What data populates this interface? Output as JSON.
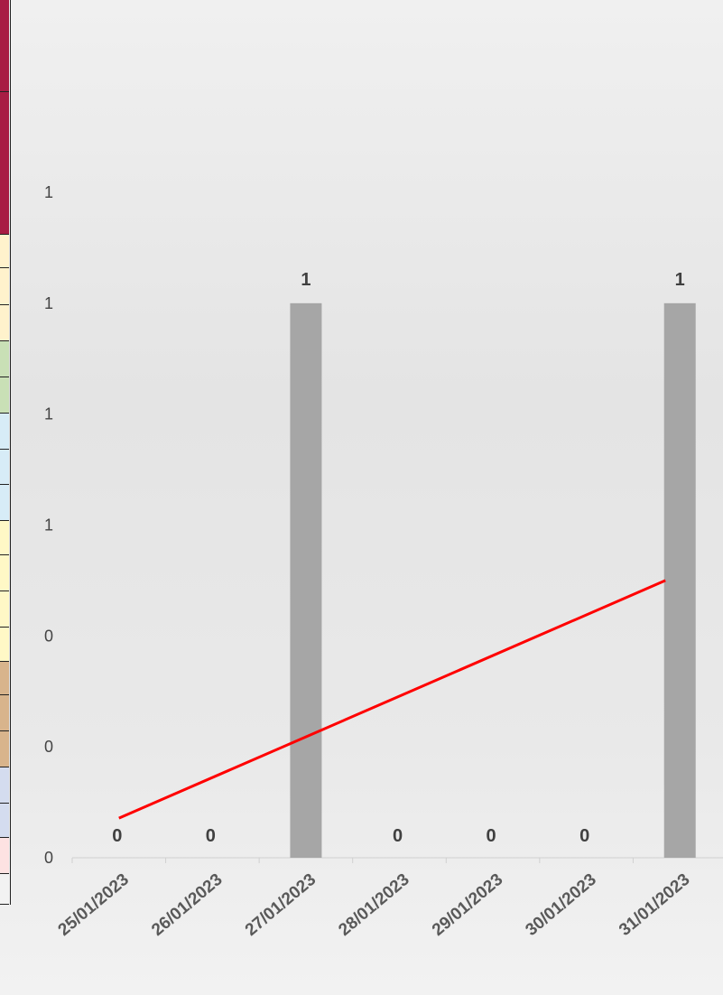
{
  "chart_data": {
    "type": "bar",
    "categories": [
      "25/01/2023",
      "26/01/2023",
      "27/01/2023",
      "28/01/2023",
      "29/01/2023",
      "30/01/2023",
      "31/01/2023"
    ],
    "values": [
      0,
      0,
      1,
      0,
      0,
      0,
      1
    ],
    "data_labels": [
      "0",
      "0",
      "1",
      "0",
      "0",
      "0",
      "1"
    ],
    "bar_color": "#a6a6a6",
    "trendline": {
      "type": "linear",
      "color": "#ff0000"
    },
    "y_tick_labels": [
      "0",
      "0",
      "0",
      "1",
      "1",
      "1",
      "1"
    ],
    "ylim": [
      0,
      1.2
    ],
    "grid": false,
    "legend": "none",
    "title": "",
    "xlabel": "",
    "ylabel": ""
  },
  "side_strip_colors": [
    "#a81c44",
    "#a81c44",
    "#fff2cc",
    "#fff2cc",
    "#c9e0b6",
    "#c9e0b6",
    "#d7ecf7",
    "#d7ecf7",
    "#d7ecf7",
    "#fff8c6",
    "#fff8c6",
    "#fff8c6",
    "#d8b48c",
    "#d8b48c",
    "#d8b48c",
    "#d4dcef",
    "#d4dcef",
    "#fde2e2",
    "#f2f2f2"
  ]
}
